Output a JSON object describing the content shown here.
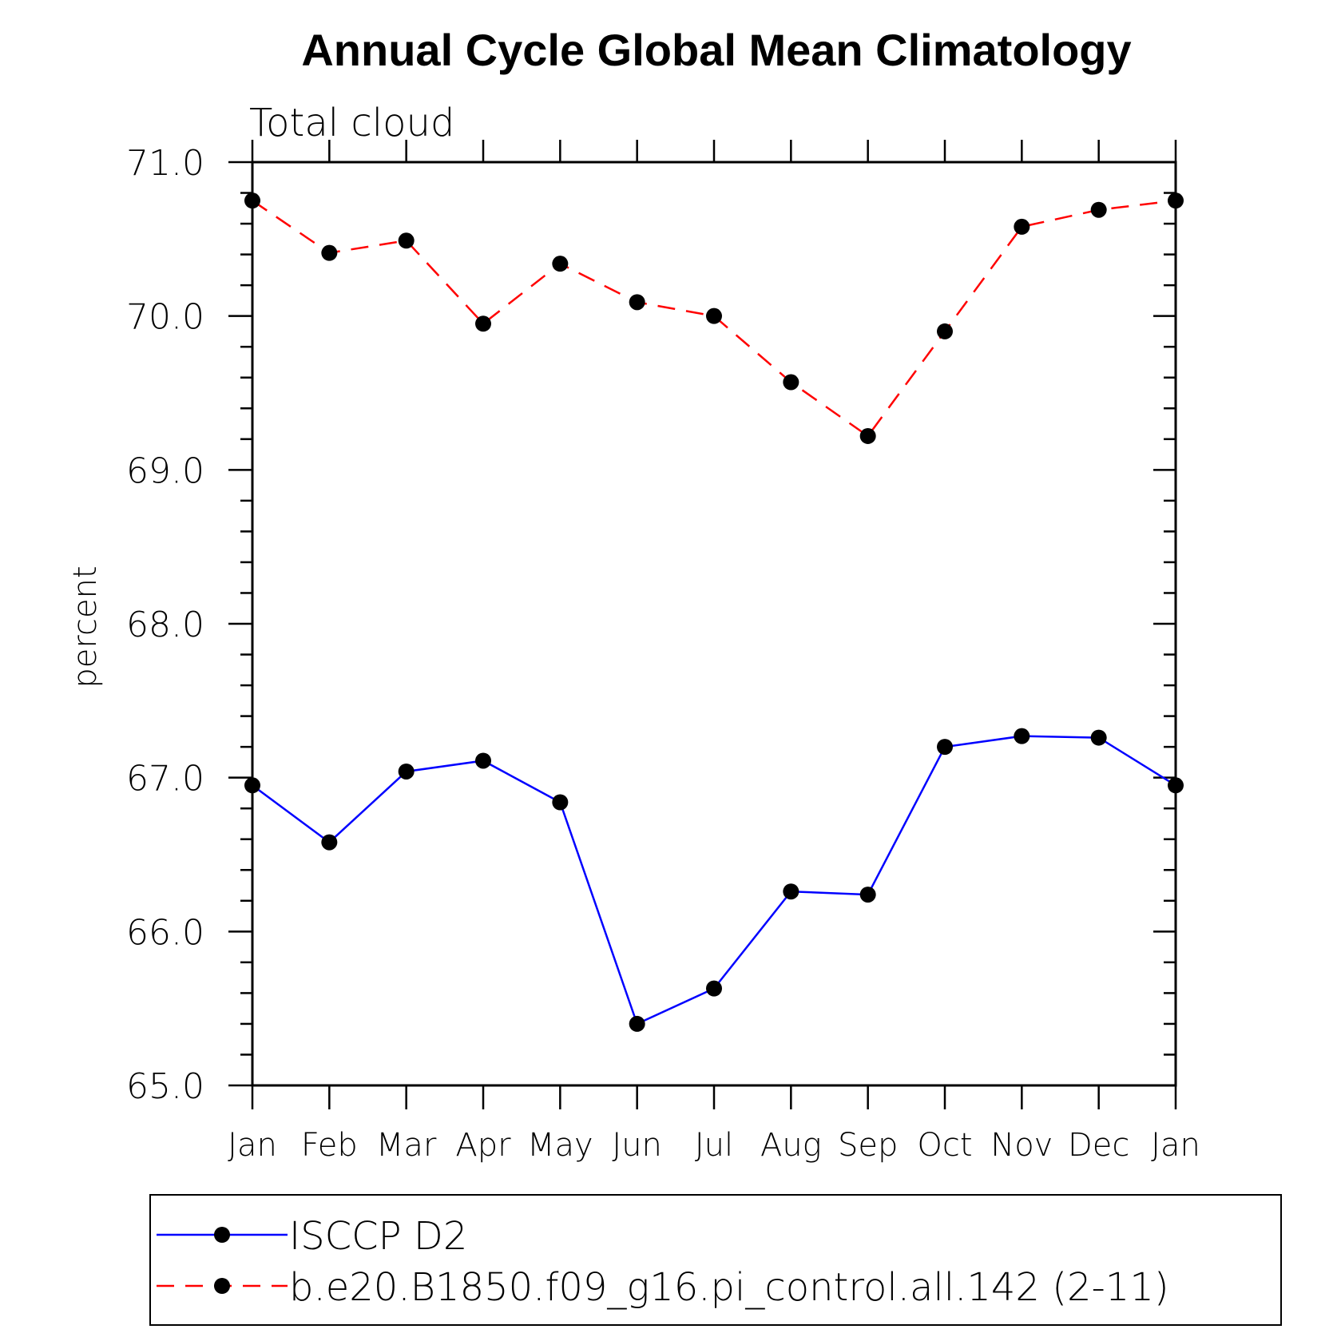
{
  "chart_data": {
    "type": "line",
    "title": "Annual Cycle Global Mean Climatology",
    "subtitle": "Total cloud",
    "xlabel": "",
    "ylabel": "percent",
    "ylim": [
      65.0,
      71.0
    ],
    "yticks": [
      "65.0",
      "66.0",
      "67.0",
      "68.0",
      "69.0",
      "70.0",
      "71.0"
    ],
    "categories": [
      "Jan",
      "Feb",
      "Mar",
      "Apr",
      "May",
      "Jun",
      "Jul",
      "Aug",
      "Sep",
      "Oct",
      "Nov",
      "Dec",
      "Jan"
    ],
    "series": [
      {
        "name": "ISCCP D2",
        "color": "#0000ff",
        "dash": "solid",
        "values": [
          66.95,
          66.58,
          67.04,
          67.11,
          66.84,
          65.4,
          65.63,
          66.26,
          66.24,
          67.2,
          67.27,
          67.26,
          66.95
        ]
      },
      {
        "name": "b.e20.B1850.f09_g16.pi_control.all.142 (2-11)",
        "color": "#ff0000",
        "dash": "dashed",
        "values": [
          70.75,
          70.41,
          70.49,
          69.95,
          70.34,
          70.09,
          70.0,
          69.57,
          69.22,
          69.9,
          70.58,
          70.69,
          70.75
        ]
      }
    ],
    "legend_position": "bottom"
  }
}
